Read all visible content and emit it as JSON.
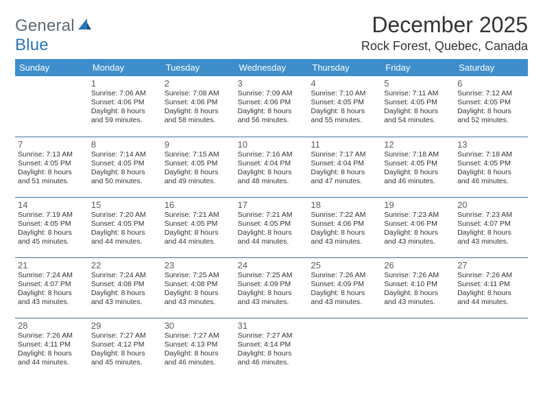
{
  "logo": {
    "word1": "General",
    "word2": "Blue"
  },
  "title": "December 2025",
  "location": "Rock Forest, Quebec, Canada",
  "colors": {
    "header_bg": "#3e8ecb",
    "header_text": "#ffffff",
    "row_border": "#3e6fa3",
    "text": "#333333",
    "logo_gray": "#5e6a74",
    "logo_blue": "#2b74b5"
  },
  "day_headers": [
    "Sunday",
    "Monday",
    "Tuesday",
    "Wednesday",
    "Thursday",
    "Friday",
    "Saturday"
  ],
  "weeks": [
    [
      null,
      {
        "n": "1",
        "sr": "7:06 AM",
        "ss": "4:06 PM",
        "dl": "8 hours and 59 minutes."
      },
      {
        "n": "2",
        "sr": "7:08 AM",
        "ss": "4:06 PM",
        "dl": "8 hours and 58 minutes."
      },
      {
        "n": "3",
        "sr": "7:09 AM",
        "ss": "4:06 PM",
        "dl": "8 hours and 56 minutes."
      },
      {
        "n": "4",
        "sr": "7:10 AM",
        "ss": "4:05 PM",
        "dl": "8 hours and 55 minutes."
      },
      {
        "n": "5",
        "sr": "7:11 AM",
        "ss": "4:05 PM",
        "dl": "8 hours and 54 minutes."
      },
      {
        "n": "6",
        "sr": "7:12 AM",
        "ss": "4:05 PM",
        "dl": "8 hours and 52 minutes."
      }
    ],
    [
      {
        "n": "7",
        "sr": "7:13 AM",
        "ss": "4:05 PM",
        "dl": "8 hours and 51 minutes."
      },
      {
        "n": "8",
        "sr": "7:14 AM",
        "ss": "4:05 PM",
        "dl": "8 hours and 50 minutes."
      },
      {
        "n": "9",
        "sr": "7:15 AM",
        "ss": "4:05 PM",
        "dl": "8 hours and 49 minutes."
      },
      {
        "n": "10",
        "sr": "7:16 AM",
        "ss": "4:04 PM",
        "dl": "8 hours and 48 minutes."
      },
      {
        "n": "11",
        "sr": "7:17 AM",
        "ss": "4:04 PM",
        "dl": "8 hours and 47 minutes."
      },
      {
        "n": "12",
        "sr": "7:18 AM",
        "ss": "4:05 PM",
        "dl": "8 hours and 46 minutes."
      },
      {
        "n": "13",
        "sr": "7:18 AM",
        "ss": "4:05 PM",
        "dl": "8 hours and 46 minutes."
      }
    ],
    [
      {
        "n": "14",
        "sr": "7:19 AM",
        "ss": "4:05 PM",
        "dl": "8 hours and 45 minutes."
      },
      {
        "n": "15",
        "sr": "7:20 AM",
        "ss": "4:05 PM",
        "dl": "8 hours and 44 minutes."
      },
      {
        "n": "16",
        "sr": "7:21 AM",
        "ss": "4:05 PM",
        "dl": "8 hours and 44 minutes."
      },
      {
        "n": "17",
        "sr": "7:21 AM",
        "ss": "4:05 PM",
        "dl": "8 hours and 44 minutes."
      },
      {
        "n": "18",
        "sr": "7:22 AM",
        "ss": "4:06 PM",
        "dl": "8 hours and 43 minutes."
      },
      {
        "n": "19",
        "sr": "7:23 AM",
        "ss": "4:06 PM",
        "dl": "8 hours and 43 minutes."
      },
      {
        "n": "20",
        "sr": "7:23 AM",
        "ss": "4:07 PM",
        "dl": "8 hours and 43 minutes."
      }
    ],
    [
      {
        "n": "21",
        "sr": "7:24 AM",
        "ss": "4:07 PM",
        "dl": "8 hours and 43 minutes."
      },
      {
        "n": "22",
        "sr": "7:24 AM",
        "ss": "4:08 PM",
        "dl": "8 hours and 43 minutes."
      },
      {
        "n": "23",
        "sr": "7:25 AM",
        "ss": "4:08 PM",
        "dl": "8 hours and 43 minutes."
      },
      {
        "n": "24",
        "sr": "7:25 AM",
        "ss": "4:09 PM",
        "dl": "8 hours and 43 minutes."
      },
      {
        "n": "25",
        "sr": "7:26 AM",
        "ss": "4:09 PM",
        "dl": "8 hours and 43 minutes."
      },
      {
        "n": "26",
        "sr": "7:26 AM",
        "ss": "4:10 PM",
        "dl": "8 hours and 43 minutes."
      },
      {
        "n": "27",
        "sr": "7:26 AM",
        "ss": "4:11 PM",
        "dl": "8 hours and 44 minutes."
      }
    ],
    [
      {
        "n": "28",
        "sr": "7:26 AM",
        "ss": "4:11 PM",
        "dl": "8 hours and 44 minutes."
      },
      {
        "n": "29",
        "sr": "7:27 AM",
        "ss": "4:12 PM",
        "dl": "8 hours and 45 minutes."
      },
      {
        "n": "30",
        "sr": "7:27 AM",
        "ss": "4:13 PM",
        "dl": "8 hours and 46 minutes."
      },
      {
        "n": "31",
        "sr": "7:27 AM",
        "ss": "4:14 PM",
        "dl": "8 hours and 46 minutes."
      },
      null,
      null,
      null
    ]
  ],
  "labels": {
    "sunrise": "Sunrise: ",
    "sunset": "Sunset: ",
    "daylight": "Daylight: "
  }
}
